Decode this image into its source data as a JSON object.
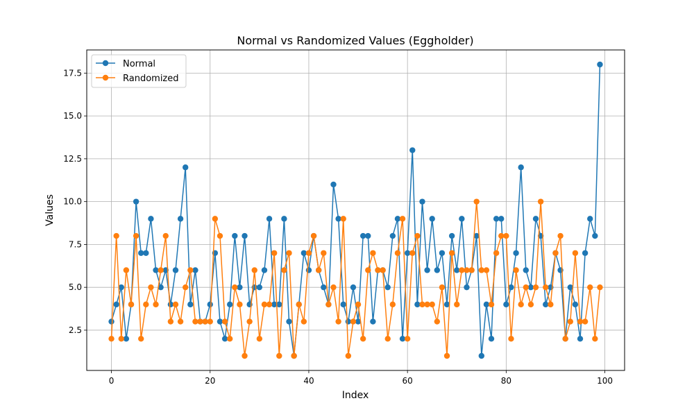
{
  "chart_data": {
    "type": "line",
    "title": "Normal vs Randomized Values (Eggholder)",
    "xlabel": "Index",
    "ylabel": "Values",
    "xlim": [
      -5,
      104
    ],
    "ylim": [
      0.15,
      18.85
    ],
    "xticks": [
      0,
      20,
      40,
      60,
      80,
      100
    ],
    "yticks": [
      2.5,
      5.0,
      7.5,
      10.0,
      12.5,
      15.0,
      17.5
    ],
    "xtick_labels": [
      "0",
      "20",
      "40",
      "60",
      "80",
      "100"
    ],
    "ytick_labels": [
      "2.5",
      "5.0",
      "7.5",
      "10.0",
      "12.5",
      "15.0",
      "17.5"
    ],
    "grid": true,
    "legend_position": "top-left",
    "series": [
      {
        "name": "Normal",
        "color": "#1f77b4",
        "marker": "circle",
        "values": [
          3,
          4,
          5,
          2,
          4,
          10,
          7,
          7,
          9,
          6,
          5,
          6,
          4,
          6,
          9,
          12,
          4,
          6,
          3,
          3,
          4,
          7,
          3,
          2,
          4,
          8,
          5,
          8,
          4,
          5,
          5,
          6,
          9,
          4,
          4,
          9,
          3,
          1,
          4,
          7,
          6,
          8,
          6,
          5,
          4,
          11,
          9,
          4,
          3,
          5,
          3,
          8,
          8,
          3,
          6,
          6,
          5,
          8,
          9,
          2,
          7,
          13,
          4,
          10,
          6,
          9,
          6,
          7,
          4,
          8,
          6,
          9,
          5,
          6,
          8,
          1,
          4,
          2,
          9,
          9,
          4,
          5,
          7,
          12,
          6,
          5,
          9,
          8,
          4,
          5,
          7,
          6,
          2,
          5,
          4,
          2,
          7,
          9,
          8,
          18
        ]
      },
      {
        "name": "Randomized",
        "color": "#ff7f0e",
        "marker": "circle",
        "values": [
          2,
          8,
          2,
          6,
          4,
          8,
          2,
          4,
          5,
          4,
          6,
          8,
          3,
          4,
          3,
          5,
          6,
          3,
          3,
          3,
          3,
          9,
          8,
          3,
          2,
          5,
          4,
          1,
          3,
          6,
          2,
          4,
          4,
          7,
          1,
          6,
          7,
          1,
          4,
          3,
          7,
          8,
          6,
          7,
          4,
          5,
          3,
          9,
          1,
          3,
          4,
          2,
          6,
          7,
          6,
          6,
          2,
          4,
          7,
          9,
          2,
          7,
          8,
          4,
          4,
          4,
          3,
          5,
          1,
          7,
          4,
          6,
          6,
          6,
          10,
          6,
          6,
          4,
          7,
          8,
          8,
          2,
          6,
          4,
          5,
          4,
          5,
          10,
          5,
          4,
          7,
          8,
          2,
          3,
          7,
          3,
          3,
          5,
          2,
          5
        ]
      }
    ]
  }
}
